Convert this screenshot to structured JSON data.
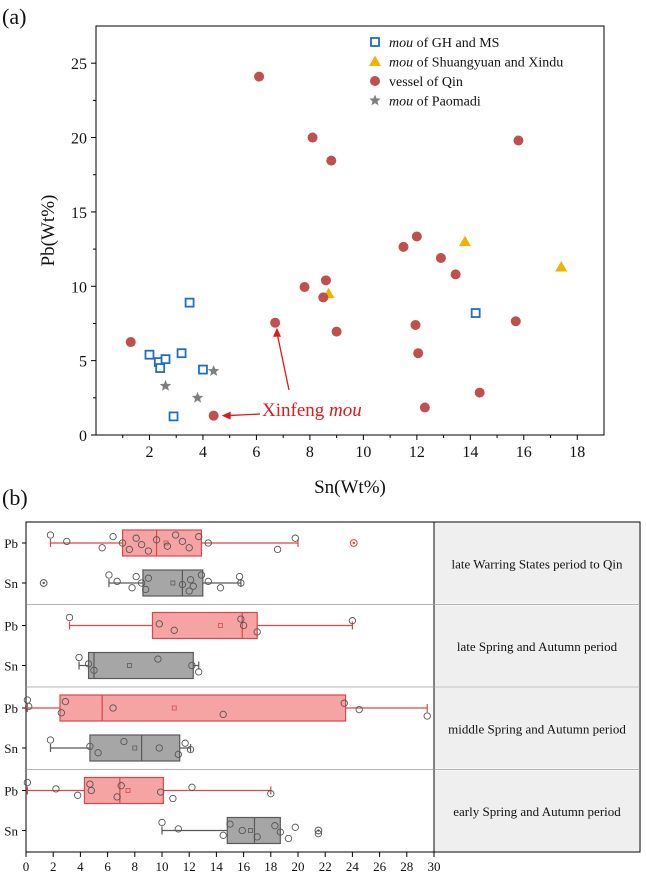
{
  "panel_labels": [
    "(a)",
    "(b)"
  ],
  "colors": {
    "gh_ms": "#1f6fc0",
    "shuangyuan": "#f0b400",
    "qin": "#c0504d",
    "paomadi": "#7f7f7f",
    "annotation": "#e0191b",
    "pink_box": "#f5a3a3",
    "pink_edge": "#d9474a",
    "grey_box": "#a6a6a6",
    "grey_edge": "#595959",
    "label_bg": "#efefef"
  },
  "chart_data": [
    {
      "type": "scatter",
      "xlabel": "Sn(Wt%)",
      "ylabel": "Pb(Wt%)",
      "xlim": [
        0,
        19
      ],
      "ylim": [
        0,
        27.5
      ],
      "xticks": [
        2,
        4,
        6,
        8,
        10,
        12,
        14,
        16,
        18
      ],
      "yticks": [
        0,
        5,
        10,
        15,
        20,
        25
      ],
      "legend_position": "top-right",
      "annotation": {
        "text_prefix": "Xinfeng ",
        "text_italic": "mou",
        "x": 4.4,
        "y": 1.3
      },
      "series": [
        {
          "name_italic": "mou",
          "name_rest": " of GH and MS",
          "marker": "square-open",
          "color": "#1f6fc0",
          "points": [
            [
              2.0,
              5.4
            ],
            [
              2.35,
              4.9
            ],
            [
              2.4,
              4.5
            ],
            [
              2.6,
              5.1
            ],
            [
              2.9,
              1.25
            ],
            [
              3.2,
              5.5
            ],
            [
              3.5,
              8.9
            ],
            [
              4.0,
              4.4
            ],
            [
              14.2,
              8.2
            ]
          ]
        },
        {
          "name_italic": "mou",
          "name_rest": " of Shuangyuan and Xindu",
          "marker": "triangle",
          "color": "#f0b400",
          "points": [
            [
              8.7,
              9.5
            ],
            [
              13.8,
              13.0
            ],
            [
              17.4,
              11.3
            ]
          ]
        },
        {
          "name_italic": "",
          "name_rest": "vessel of Qin",
          "marker": "circle",
          "color": "#c0504d",
          "points": [
            [
              1.3,
              6.25
            ],
            [
              4.4,
              1.3
            ],
            [
              6.1,
              24.1
            ],
            [
              6.7,
              7.55
            ],
            [
              7.8,
              9.95
            ],
            [
              8.1,
              20.0
            ],
            [
              8.8,
              18.45
            ],
            [
              8.5,
              9.25
            ],
            [
              8.6,
              10.4
            ],
            [
              9.0,
              6.95
            ],
            [
              11.5,
              12.65
            ],
            [
              12.0,
              13.35
            ],
            [
              11.95,
              7.4
            ],
            [
              12.05,
              5.5
            ],
            [
              12.3,
              1.85
            ],
            [
              12.9,
              11.9
            ],
            [
              13.45,
              10.8
            ],
            [
              14.35,
              2.85
            ],
            [
              15.7,
              7.65
            ],
            [
              15.8,
              19.8
            ]
          ]
        },
        {
          "name_italic": "mou",
          "name_rest": " of Paomadi",
          "marker": "star",
          "color": "#7f7f7f",
          "points": [
            [
              2.6,
              3.3
            ],
            [
              3.8,
              2.5
            ],
            [
              4.4,
              4.3
            ]
          ]
        }
      ]
    },
    {
      "type": "box",
      "xlim": [
        0,
        30
      ],
      "xticks": [
        0,
        2,
        4,
        6,
        8,
        10,
        12,
        14,
        16,
        18,
        20,
        22,
        24,
        26,
        28,
        30
      ],
      "groups": [
        {
          "label": "late Warring States period to Qin",
          "rows": [
            {
              "name": "Pb",
              "whisker": [
                1.8,
                20.0
              ],
              "box": [
                7.1,
                12.9
              ],
              "median": 9.6,
              "mean": 10.3,
              "outliers": [
                24.1
              ],
              "points": [
                1.8,
                3.0,
                5.6,
                6.4,
                7.1,
                7.6,
                8.1,
                8.5,
                9.0,
                9.6,
                10.4,
                11.0,
                11.5,
                12.0,
                12.7,
                13.4,
                18.5,
                19.8
              ]
            },
            {
              "name": "Sn",
              "whisker": [
                6.1,
                15.8
              ],
              "box": [
                8.6,
                13.0
              ],
              "median": 11.5,
              "mean": 10.8,
              "outliers": [
                1.3
              ],
              "points": [
                6.1,
                6.7,
                7.8,
                8.1,
                8.5,
                8.8,
                9.0,
                11.5,
                12.0,
                12.1,
                12.3,
                12.9,
                13.4,
                14.3,
                15.7,
                15.8
              ]
            }
          ]
        },
        {
          "label": "late Spring and Autumn period",
          "rows": [
            {
              "name": "Pb",
              "whisker": [
                3.2,
                24.0
              ],
              "box": [
                9.3,
                17.0
              ],
              "median": 15.9,
              "mean": 14.3,
              "outliers": [],
              "points": [
                3.2,
                9.8,
                10.9,
                15.8,
                16.0,
                17.0,
                24.0
              ]
            },
            {
              "name": "Sn",
              "whisker": [
                3.9,
                12.7
              ],
              "box": [
                4.6,
                12.3
              ],
              "median": 5.0,
              "mean": 7.6,
              "outliers": [],
              "points": [
                3.9,
                4.6,
                5.0,
                9.7,
                12.2,
                12.7
              ]
            }
          ]
        },
        {
          "label": "middle Spring and Autumn period",
          "rows": [
            {
              "name": "Pb",
              "whisker": [
                0.1,
                29.5
              ],
              "box": [
                2.5,
                23.5
              ],
              "median": 5.6,
              "mean": 10.9,
              "outliers": [],
              "points": [
                0.1,
                0.2,
                2.6,
                2.9,
                6.4,
                14.5,
                23.4,
                24.5,
                29.5
              ]
            },
            {
              "name": "Sn",
              "whisker": [
                1.8,
                12.1
              ],
              "box": [
                4.7,
                11.3
              ],
              "median": 8.5,
              "mean": 8.0,
              "outliers": [],
              "points": [
                1.8,
                4.7,
                5.3,
                7.2,
                9.8,
                11.2,
                11.7,
                12.1
              ]
            }
          ]
        },
        {
          "label": "early Spring and Autumn period",
          "rows": [
            {
              "name": "Pb",
              "whisker": [
                0.1,
                18.0
              ],
              "box": [
                4.3,
                10.1
              ],
              "median": 6.9,
              "mean": 7.5,
              "outliers": [],
              "points": [
                0.1,
                2.2,
                3.8,
                4.7,
                4.8,
                6.7,
                7.0,
                9.9,
                10.8,
                12.2,
                18.0
              ]
            },
            {
              "name": "Sn",
              "whisker": [
                10.0,
                18.7
              ],
              "box": [
                14.8,
                18.7
              ],
              "median": 16.8,
              "mean": 16.5,
              "outliers": [
                21.5
              ],
              "points": [
                10.0,
                11.2,
                14.5,
                15.0,
                15.9,
                17.0,
                18.3,
                18.7,
                19.3,
                19.8,
                21.5
              ]
            }
          ]
        }
      ]
    }
  ]
}
